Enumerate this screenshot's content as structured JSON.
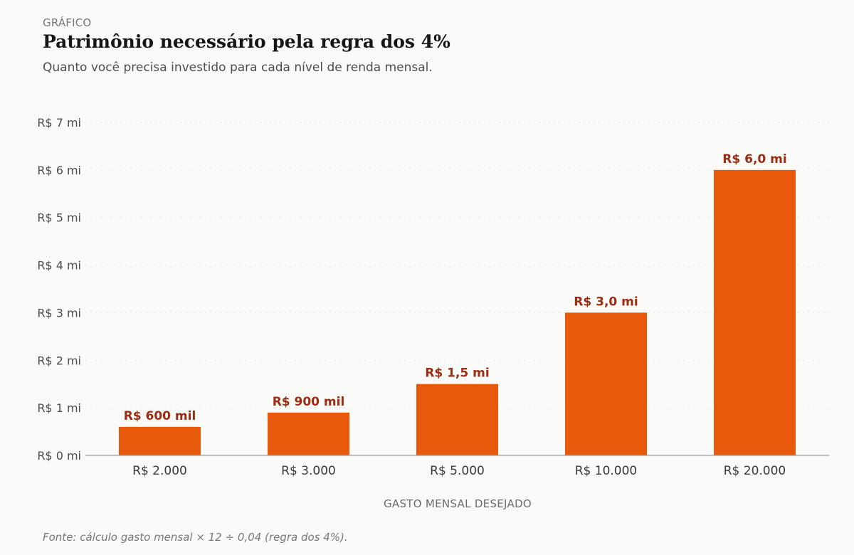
{
  "header": {
    "kicker": "GRÁFICO",
    "title": "Patrimônio necessário pela regra dos 4%",
    "subtitle": "Quanto você precisa investido para cada nível de renda mensal."
  },
  "footer": {
    "source": "Fonte: cálculo gasto mensal × 12 ÷ 0,04 (regra dos 4%)."
  },
  "colors": {
    "bar": "#e8590c",
    "label": "#9c2d12",
    "grid": "#e6e6e6",
    "axis": "#999999",
    "tick_text": "#4d4d4d",
    "category_text": "#3a3a3a",
    "xlabel_text": "#6b6b6b"
  },
  "chart_data": {
    "type": "bar",
    "categories": [
      "R$ 2.000",
      "R$ 3.000",
      "R$ 5.000",
      "R$ 10.000",
      "R$ 20.000"
    ],
    "values": [
      600000,
      900000,
      1500000,
      3000000,
      6000000
    ],
    "value_labels": [
      "R$ 600 mil",
      "R$ 900 mil",
      "R$ 1,5 mi",
      "R$ 3,0 mi",
      "R$ 6,0 mi"
    ],
    "xlabel": "GASTO MENSAL DESEJADO",
    "ylabel": "",
    "ylim": [
      0,
      7000000
    ],
    "yticks": [
      0,
      1000000,
      2000000,
      3000000,
      4000000,
      5000000,
      6000000,
      7000000
    ],
    "ytick_labels": [
      "R$ 0 mi",
      "R$ 1 mi",
      "R$ 2 mi",
      "R$ 3 mi",
      "R$ 4 mi",
      "R$ 5 mi",
      "R$ 6 mi",
      "R$ 7 mi"
    ],
    "grid": true,
    "legend": false
  }
}
